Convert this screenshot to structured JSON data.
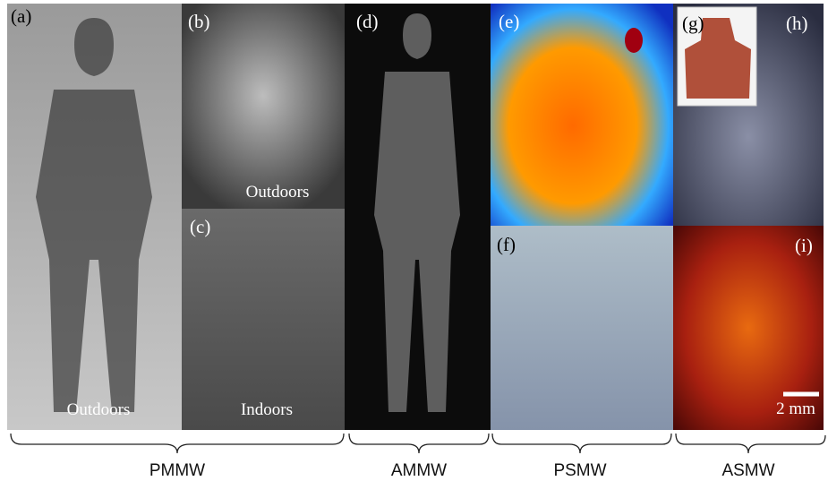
{
  "panels": [
    {
      "label": "(a)",
      "caption": "Outdoors"
    },
    {
      "label": "(b)",
      "caption": "Outdoors"
    },
    {
      "label": "(c)",
      "caption": "Indoors"
    },
    {
      "label": "(d)"
    },
    {
      "label": "(e)"
    },
    {
      "label": "(f)"
    },
    {
      "label": "(g)"
    },
    {
      "label": "(h)"
    },
    {
      "label": "(i)",
      "scale_bar": "2 mm"
    }
  ],
  "groups": [
    "PMMW",
    "AMMW",
    "PSMW",
    "ASMW"
  ]
}
